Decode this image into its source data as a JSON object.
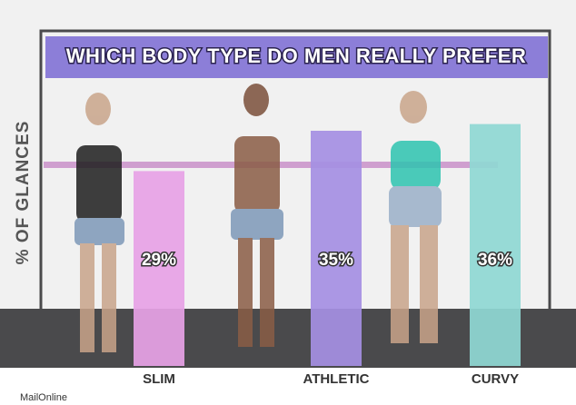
{
  "chart_data": {
    "type": "bar",
    "title": "WHICH BODY TYPE DO MEN REALLY PREFER",
    "y_label": "% OF GLANCES",
    "categories": [
      "SLIM",
      "ATHLETIC",
      "CURVY"
    ],
    "values": [
      29,
      35,
      36
    ],
    "value_labels": [
      "29%",
      "35%",
      "36%"
    ],
    "colors": [
      "#e7a2e6",
      "#a58fe3",
      "#8fd8d4"
    ],
    "source": "MailOnline"
  }
}
